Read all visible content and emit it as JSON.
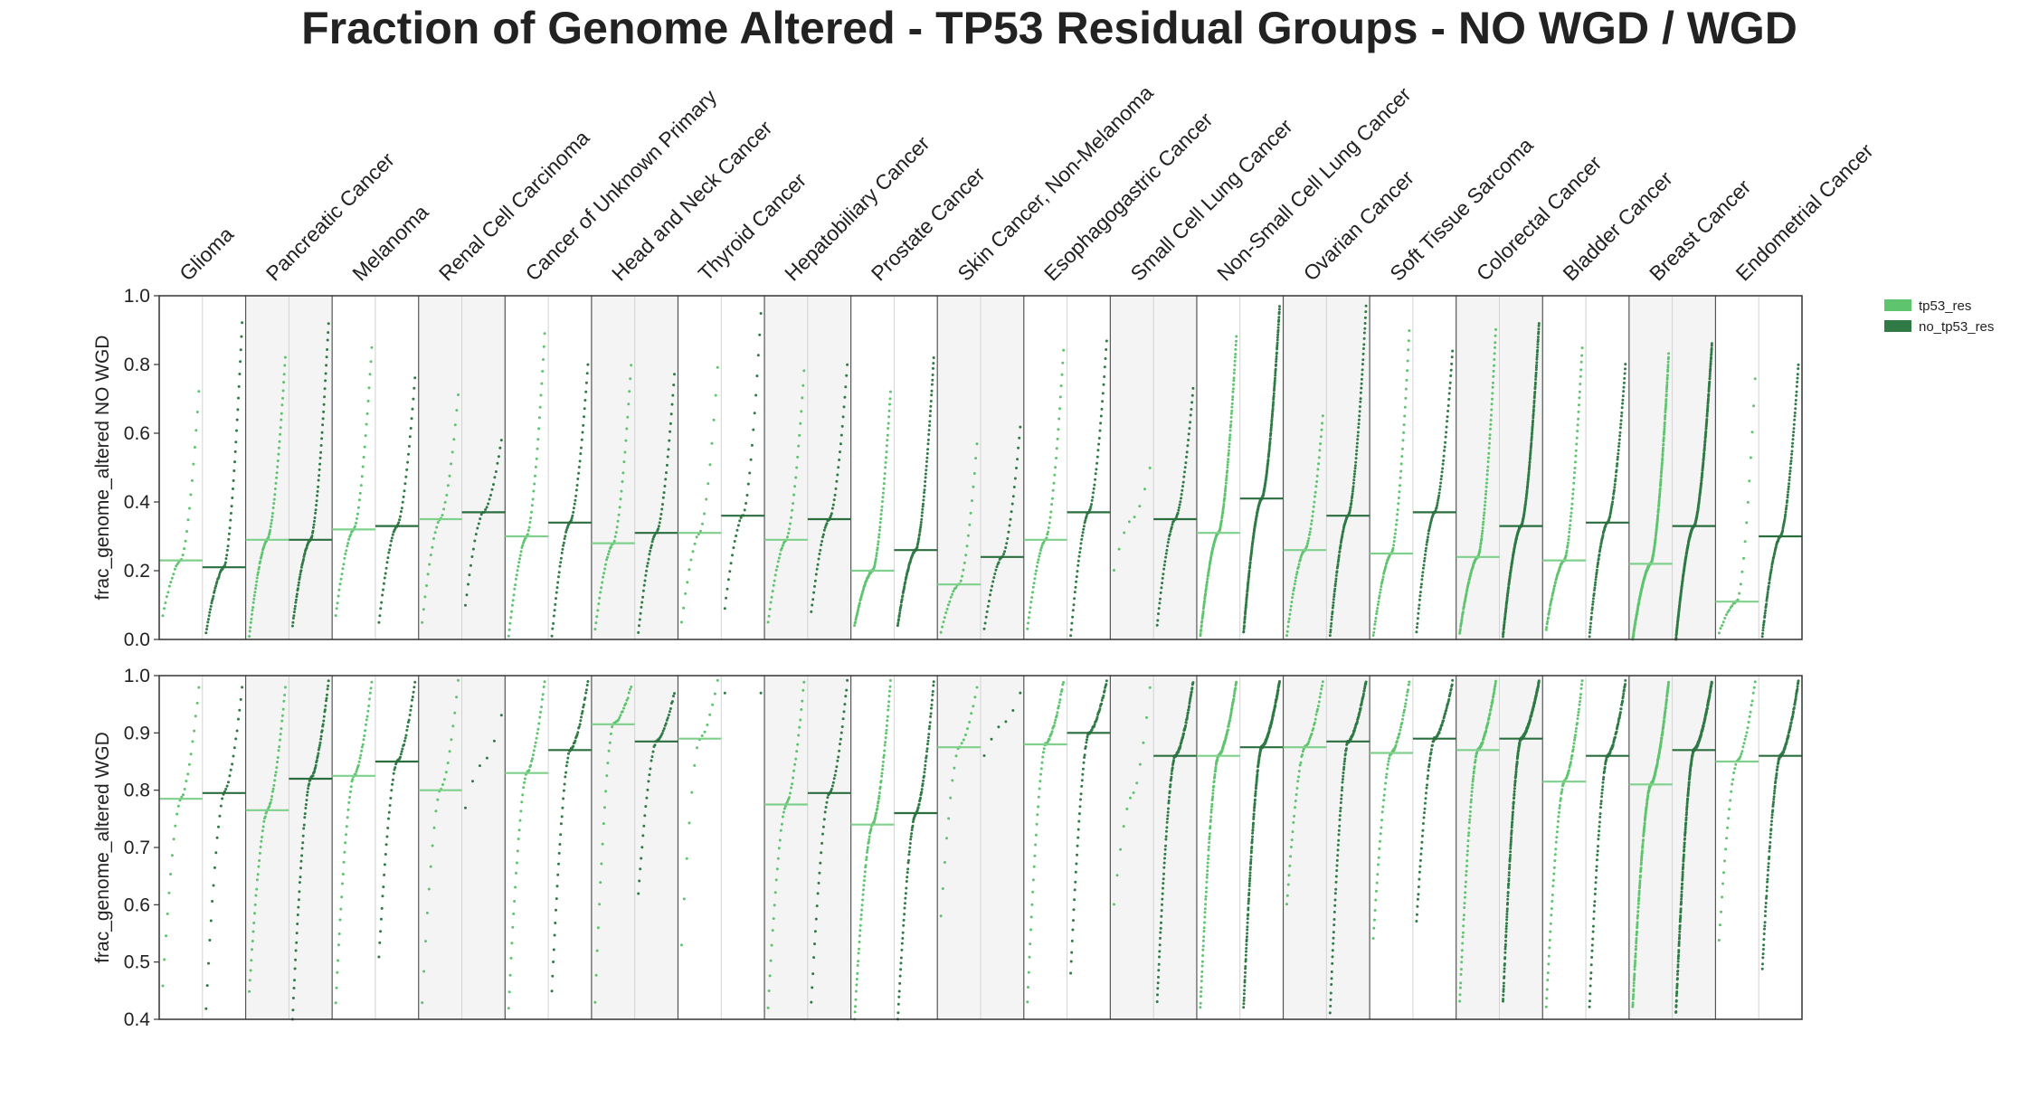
{
  "chart_data": {
    "type": "scatter",
    "title": "Fraction of Genome Altered - TP53 Residual Groups - NO WGD / WGD",
    "categories": [
      "Glioma",
      "Pancreatic Cancer",
      "Melanoma",
      "Renal Cell Carcinoma",
      "Cancer of Unknown Primary",
      "Head and Neck Cancer",
      "Thyroid Cancer",
      "Hepatobiliary Cancer",
      "Prostate Cancer",
      "Skin Cancer, Non-Melanoma",
      "Esophagogastric Cancer",
      "Small Cell Lung Cancer",
      "Non-Small Cell Lung Cancer",
      "Ovarian Cancer",
      "Soft Tissue Sarcoma",
      "Colorectal Cancer",
      "Bladder Cancer",
      "Breast Cancer",
      "Endometrial Cancer"
    ],
    "legend": {
      "placement": "top-right",
      "entries": [
        {
          "name": "tp53_res",
          "color": "#5ec46e"
        },
        {
          "name": "no_tp53_res",
          "color": "#2f7a45"
        }
      ]
    },
    "panels": [
      {
        "ylabel": "frac_genome_altered NO WGD",
        "ylim": [
          0.0,
          1.0
        ],
        "yticks": [
          "0.0",
          "0.2",
          "0.4",
          "0.6",
          "0.8",
          "1.0"
        ],
        "series": [
          {
            "name": "tp53_res",
            "medians": [
              0.23,
              0.29,
              0.32,
              0.35,
              0.3,
              0.28,
              0.31,
              0.29,
              0.2,
              0.16,
              0.29,
              null,
              0.31,
              0.26,
              0.25,
              0.24,
              0.23,
              0.22,
              0.11
            ],
            "ranges": [
              [
                0.07,
                0.72
              ],
              [
                0.01,
                0.82
              ],
              [
                0.07,
                0.85
              ],
              [
                0.05,
                0.71
              ],
              [
                0.01,
                0.89
              ],
              [
                0.03,
                0.8
              ],
              [
                0.05,
                0.79
              ],
              [
                0.05,
                0.78
              ],
              [
                0.04,
                0.72
              ],
              [
                0.02,
                0.57
              ],
              [
                0.03,
                0.84
              ],
              [
                0.2,
                0.5
              ],
              [
                0.01,
                0.88
              ],
              [
                0.01,
                0.65
              ],
              [
                0.01,
                0.9
              ],
              [
                0.02,
                0.9
              ],
              [
                0.03,
                0.85
              ],
              [
                0.0,
                0.83
              ],
              [
                0.02,
                0.76
              ]
            ],
            "counts": [
              28,
              70,
              42,
              26,
              50,
              42,
              20,
              40,
              90,
              30,
              50,
              8,
              150,
              60,
              70,
              120,
              90,
              260,
              26
            ]
          },
          {
            "name": "no_tp53_res",
            "medians": [
              0.21,
              0.29,
              0.33,
              0.37,
              0.34,
              0.31,
              0.36,
              0.35,
              0.26,
              0.24,
              0.37,
              0.35,
              0.41,
              0.36,
              0.37,
              0.33,
              0.34,
              0.33,
              0.3
            ],
            "ranges": [
              [
                0.02,
                0.92
              ],
              [
                0.04,
                0.92
              ],
              [
                0.05,
                0.76
              ],
              [
                0.1,
                0.58
              ],
              [
                0.01,
                0.8
              ],
              [
                0.02,
                0.77
              ],
              [
                0.09,
                0.95
              ],
              [
                0.08,
                0.8
              ],
              [
                0.04,
                0.82
              ],
              [
                0.03,
                0.62
              ],
              [
                0.01,
                0.87
              ],
              [
                0.04,
                0.73
              ],
              [
                0.02,
                0.97
              ],
              [
                0.01,
                0.97
              ],
              [
                0.02,
                0.84
              ],
              [
                0.01,
                0.92
              ],
              [
                0.01,
                0.8
              ],
              [
                0.0,
                0.86
              ],
              [
                0.01,
                0.8
              ]
            ],
            "counts": [
              60,
              80,
              45,
              28,
              55,
              50,
              30,
              45,
              110,
              38,
              60,
              60,
              230,
              120,
              80,
              240,
              110,
              300,
              120
            ]
          }
        ]
      },
      {
        "ylabel": "frac_genome_altered WGD",
        "ylim": [
          0.4,
          1.0
        ],
        "yticks": [
          "0.4",
          "0.5",
          "0.6",
          "0.7",
          "0.8",
          "0.9",
          "1.0"
        ],
        "series": [
          {
            "name": "tp53_res",
            "medians": [
              0.785,
              0.765,
              0.825,
              0.8,
              0.83,
              0.915,
              0.89,
              0.775,
              0.74,
              0.875,
              0.88,
              null,
              0.86,
              0.875,
              0.865,
              0.87,
              0.815,
              0.81,
              0.85
            ],
            "ranges": [
              [
                0.46,
                0.98
              ],
              [
                0.45,
                0.98
              ],
              [
                0.43,
                0.99
              ],
              [
                0.43,
                0.99
              ],
              [
                0.42,
                0.99
              ],
              [
                0.43,
                0.98
              ],
              [
                0.53,
                0.99
              ],
              [
                0.42,
                0.99
              ],
              [
                0.4,
                0.99
              ],
              [
                0.58,
                0.98
              ],
              [
                0.43,
                0.99
              ],
              [
                0.6,
                0.98
              ],
              [
                0.42,
                0.99
              ],
              [
                0.6,
                0.99
              ],
              [
                0.54,
                0.99
              ],
              [
                0.43,
                0.99
              ],
              [
                0.42,
                0.99
              ],
              [
                0.42,
                0.99
              ],
              [
                0.54,
                0.99
              ]
            ],
            "counts": [
              24,
              55,
              50,
              22,
              45,
              35,
              15,
              40,
              90,
              20,
              55,
              12,
              150,
              50,
              60,
              120,
              80,
              260,
              40
            ]
          },
          {
            "name": "no_tp53_res",
            "medians": [
              0.795,
              0.82,
              0.85,
              null,
              0.87,
              0.885,
              null,
              0.795,
              0.76,
              null,
              0.9,
              0.86,
              0.875,
              0.885,
              0.89,
              0.89,
              0.86,
              0.87,
              0.86
            ],
            "ranges": [
              [
                0.42,
                0.98
              ],
              [
                0.4,
                0.99
              ],
              [
                0.51,
                0.99
              ],
              [
                0.77,
                0.93
              ],
              [
                0.45,
                0.99
              ],
              [
                0.62,
                0.97
              ],
              [
                0.97,
                0.97
              ],
              [
                0.43,
                0.99
              ],
              [
                0.4,
                0.99
              ],
              [
                0.86,
                0.97
              ],
              [
                0.48,
                0.99
              ],
              [
                0.43,
                0.99
              ],
              [
                0.42,
                0.99
              ],
              [
                0.41,
                0.99
              ],
              [
                0.57,
                0.99
              ],
              [
                0.43,
                0.99
              ],
              [
                0.42,
                0.99
              ],
              [
                0.41,
                0.99
              ],
              [
                0.49,
                0.99
              ]
            ],
            "counts": [
              30,
              75,
              50,
              6,
              55,
              40,
              2,
              45,
              90,
              6,
              70,
              120,
              230,
              120,
              80,
              250,
              110,
              300,
              140
            ]
          }
        ]
      }
    ]
  }
}
